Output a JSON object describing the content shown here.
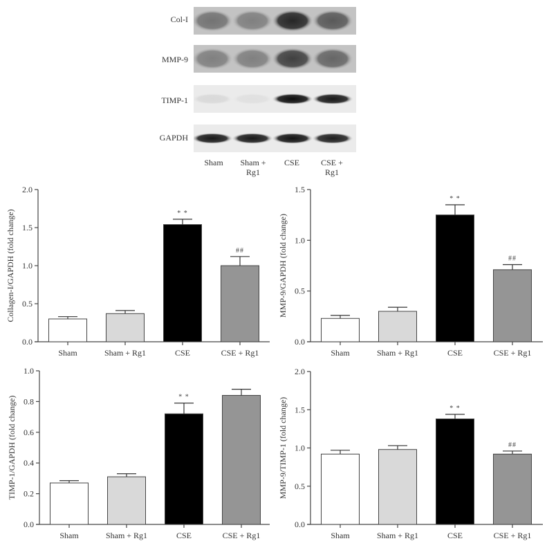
{
  "blot": {
    "rows": [
      {
        "label": "Col-I",
        "intensity": [
          0.55,
          0.5,
          0.85,
          0.65
        ]
      },
      {
        "label": "MMP-9",
        "intensity": [
          0.5,
          0.5,
          0.75,
          0.6
        ]
      },
      {
        "label": "TIMP-1",
        "intensity": [
          0.15,
          0.12,
          0.95,
          0.9
        ]
      },
      {
        "label": "GAPDH",
        "intensity": [
          0.9,
          0.9,
          0.92,
          0.88
        ]
      }
    ],
    "lanes": [
      "Sham",
      "Sham +\nRg1",
      "CSE",
      "CSE +\nRg1"
    ],
    "lane_line1": [
      "Sham",
      "Sham +",
      "CSE",
      "CSE +"
    ],
    "lane_line2": [
      "",
      "Rg1",
      "",
      "Rg1"
    ]
  },
  "colors": {
    "Sham": "#ffffff",
    "Sham + Rg1": "#d9d9d9",
    "CSE": "#000000",
    "CSE + Rg1": "#959595",
    "axis": "#444444"
  },
  "chart_data": [
    {
      "type": "bar",
      "title": "",
      "xlabel": "",
      "ylabel": "Collagen-I/GAPDH (fold change)",
      "categories": [
        "Sham",
        "Sham + Rg1",
        "CSE",
        "CSE + Rg1"
      ],
      "values": [
        0.3,
        0.37,
        1.54,
        1.0
      ],
      "error": [
        0.03,
        0.04,
        0.07,
        0.12
      ],
      "annotations": [
        "",
        "",
        "**",
        "##"
      ],
      "ylim": [
        0,
        2.0
      ],
      "yticks": [
        "0.0",
        "0.5",
        "1.0",
        "1.5",
        "2.0"
      ],
      "grid": false,
      "legend": "none"
    },
    {
      "type": "bar",
      "title": "",
      "xlabel": "",
      "ylabel": "MMP-9/GAPDH (fold change)",
      "categories": [
        "Sham",
        "Sham + Rg1",
        "CSE",
        "CSE + Rg1"
      ],
      "values": [
        0.23,
        0.3,
        1.25,
        0.71
      ],
      "error": [
        0.03,
        0.04,
        0.1,
        0.05
      ],
      "annotations": [
        "",
        "",
        "**",
        "##"
      ],
      "ylim": [
        0,
        1.5
      ],
      "yticks": [
        "0.0",
        "0.5",
        "1.0",
        "1.5"
      ],
      "grid": false,
      "legend": "none"
    },
    {
      "type": "bar",
      "title": "",
      "xlabel": "",
      "ylabel": "TIMP-1/GAPDH (fold change)",
      "categories": [
        "Sham",
        "Sham + Rg1",
        "CSE",
        "CSE + Rg1"
      ],
      "values": [
        0.27,
        0.31,
        0.72,
        0.84
      ],
      "error": [
        0.015,
        0.02,
        0.07,
        0.04
      ],
      "annotations": [
        "",
        "",
        "**",
        ""
      ],
      "ylim": [
        0,
        1.0
      ],
      "yticks": [
        "0.0",
        "0.2",
        "0.4",
        "0.6",
        "0.8",
        "1.0"
      ],
      "grid": false,
      "legend": "none"
    },
    {
      "type": "bar",
      "title": "",
      "xlabel": "",
      "ylabel": "MMP-9/TIMP-1 (fold change)",
      "categories": [
        "Sham",
        "Sham + Rg1",
        "CSE",
        "CSE + Rg1"
      ],
      "values": [
        0.92,
        0.98,
        1.38,
        0.92
      ],
      "error": [
        0.05,
        0.05,
        0.06,
        0.04
      ],
      "annotations": [
        "",
        "",
        "**",
        "##"
      ],
      "ylim": [
        0,
        2.0
      ],
      "yticks": [
        "0.0",
        "0.5",
        "1.0",
        "1.5",
        "2.0"
      ],
      "grid": false,
      "legend": "none"
    }
  ]
}
